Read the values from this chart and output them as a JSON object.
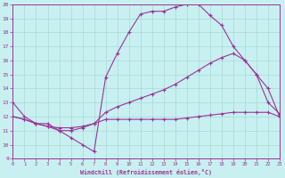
{
  "bg_color": "#c8f0f0",
  "line_color": "#993399",
  "grid_color": "#a8d8d8",
  "xlabel": "Windchill (Refroidissement éolien,°C)",
  "xlim": [
    0,
    23
  ],
  "ylim": [
    9,
    20
  ],
  "xticks": [
    0,
    1,
    2,
    3,
    4,
    5,
    6,
    7,
    8,
    9,
    10,
    11,
    12,
    13,
    14,
    15,
    16,
    17,
    18,
    19,
    20,
    21,
    22,
    23
  ],
  "yticks": [
    9,
    10,
    11,
    12,
    13,
    14,
    15,
    16,
    17,
    18,
    19,
    20
  ],
  "curve1_x": [
    0,
    1,
    2,
    3,
    4,
    5,
    6,
    7,
    8,
    9,
    10,
    11,
    12,
    13,
    14,
    15,
    16,
    17,
    18,
    19,
    20,
    21,
    22,
    23
  ],
  "curve1_y": [
    13.0,
    12.0,
    11.5,
    11.5,
    11.0,
    10.5,
    10.0,
    9.5,
    14.8,
    16.5,
    18.0,
    19.3,
    19.5,
    19.5,
    19.8,
    20.0,
    20.0,
    19.2,
    18.5,
    17.0,
    16.0,
    15.0,
    14.0,
    12.0
  ],
  "curve2_x": [
    0,
    1,
    2,
    3,
    4,
    5,
    6,
    7,
    8,
    9,
    10,
    11,
    12,
    13,
    14,
    15,
    16,
    17,
    18,
    19,
    20,
    21,
    22,
    23
  ],
  "curve2_y": [
    12.0,
    11.8,
    11.5,
    11.3,
    11.2,
    11.2,
    11.3,
    11.5,
    12.3,
    12.7,
    13.0,
    13.3,
    13.6,
    13.9,
    14.3,
    14.8,
    15.3,
    15.8,
    16.2,
    16.5,
    16.0,
    15.0,
    13.0,
    12.2
  ],
  "curve3_x": [
    0,
    1,
    2,
    3,
    4,
    5,
    6,
    7,
    8,
    9,
    10,
    11,
    12,
    13,
    14,
    15,
    16,
    17,
    18,
    19,
    20,
    21,
    22,
    23
  ],
  "curve3_y": [
    12.0,
    11.8,
    11.5,
    11.3,
    11.0,
    11.0,
    11.2,
    11.5,
    11.8,
    11.8,
    11.8,
    11.8,
    11.8,
    11.8,
    11.8,
    11.9,
    12.0,
    12.1,
    12.2,
    12.3,
    12.3,
    12.3,
    12.3,
    12.0
  ]
}
